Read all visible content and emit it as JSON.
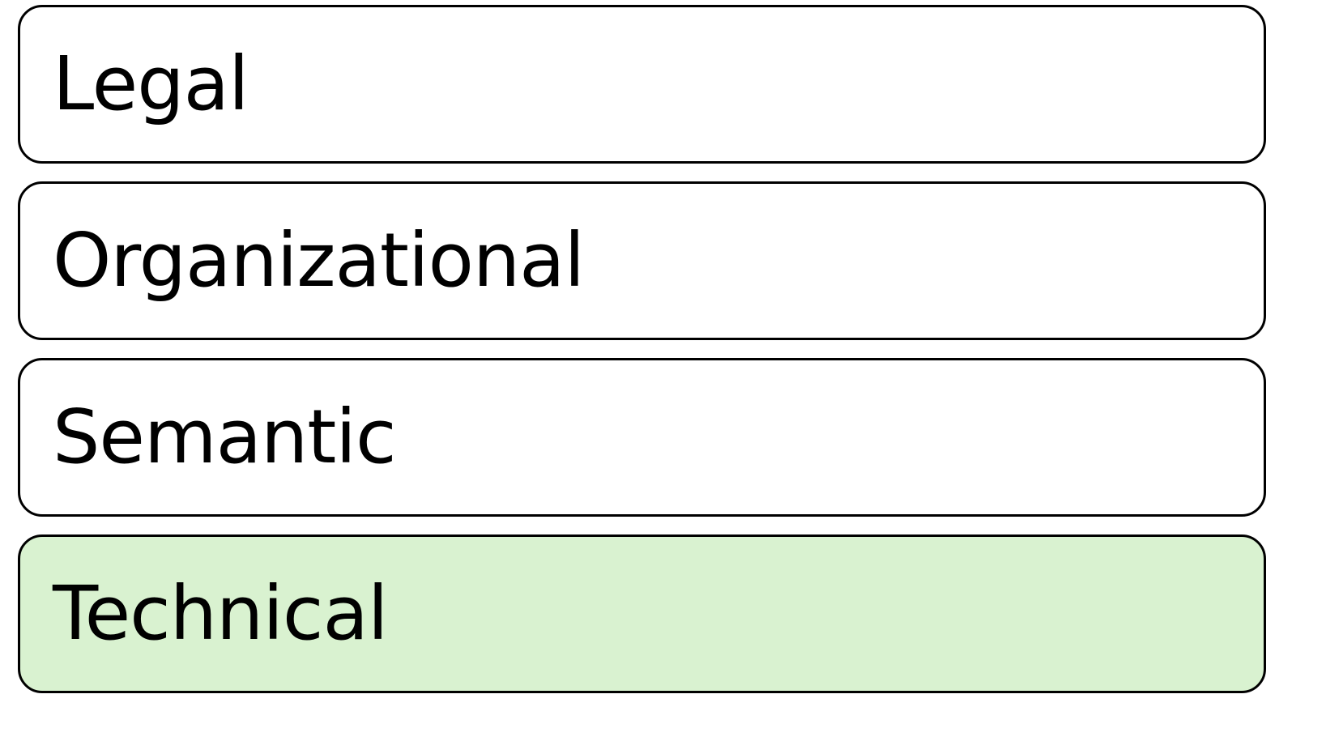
{
  "layers": [
    {
      "label": "Legal",
      "fill": "#ffffff"
    },
    {
      "label": "Organizational",
      "fill": "#ffffff"
    },
    {
      "label": "Semantic",
      "fill": "#ffffff"
    },
    {
      "label": "Technical",
      "fill": "#d9f2d0"
    }
  ],
  "colors": {
    "border": "#000000",
    "text": "#000000",
    "highlight": "#d9f2d0"
  }
}
